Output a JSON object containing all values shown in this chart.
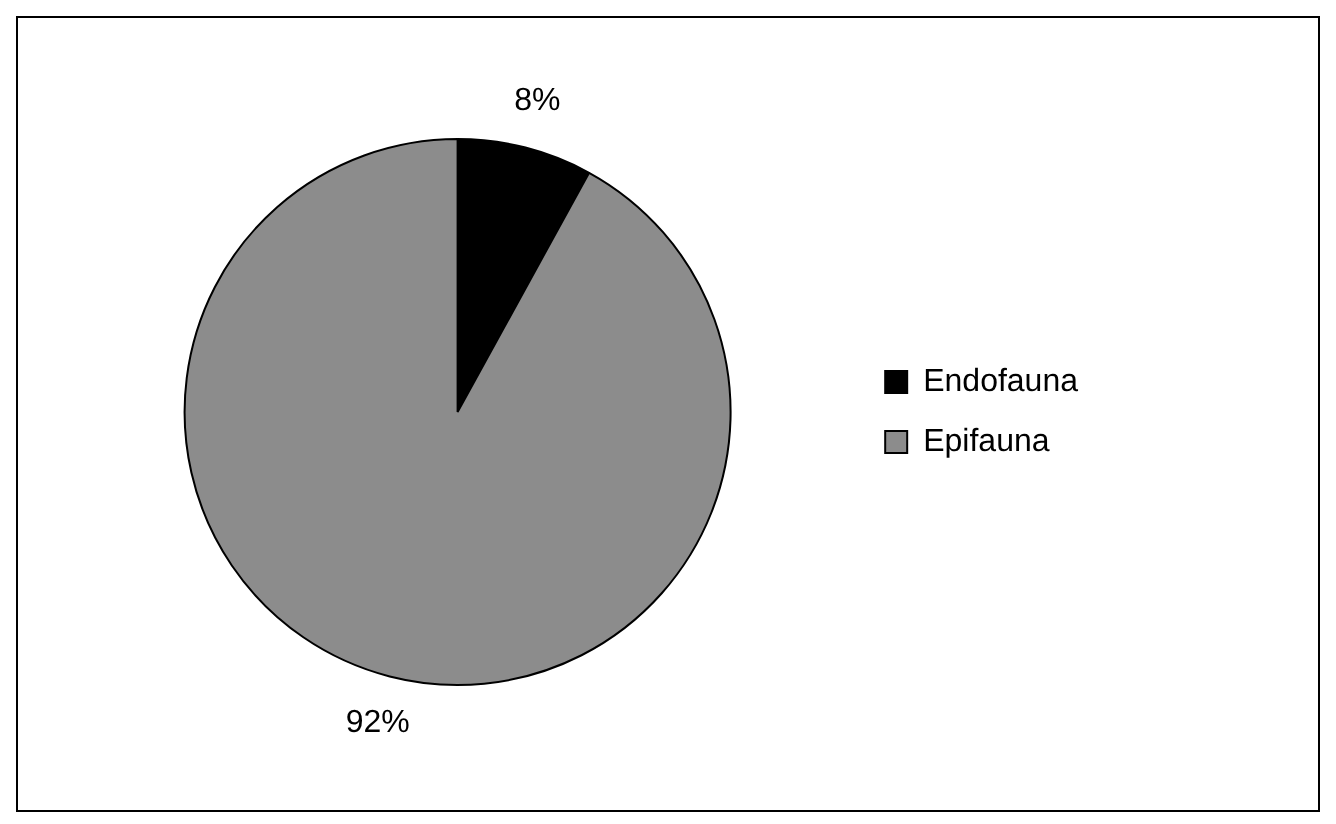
{
  "chart_data": {
    "type": "pie",
    "categories": [
      "Endofauna",
      "Epifauna"
    ],
    "values": [
      8,
      92
    ],
    "colors": [
      "#000000",
      "#8c8c8c"
    ],
    "value_labels": [
      "8%",
      "92%"
    ],
    "legend": "right"
  }
}
